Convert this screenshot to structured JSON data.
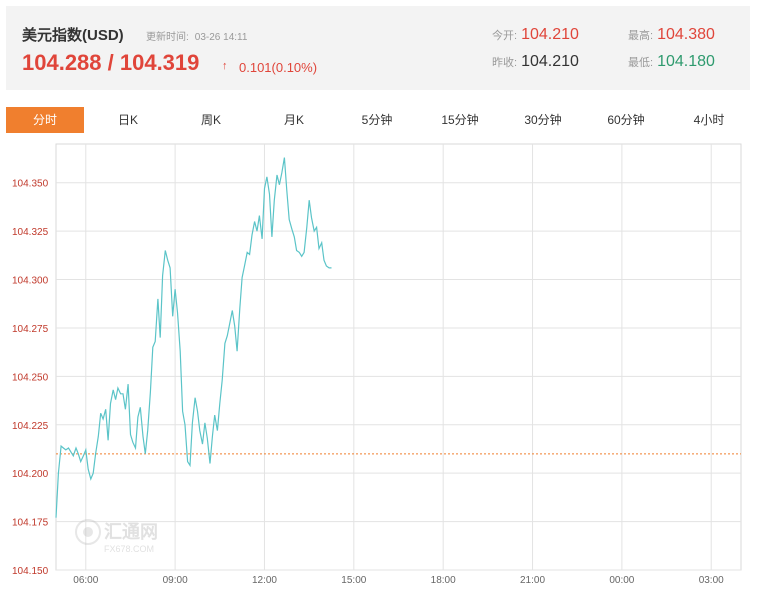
{
  "quote": {
    "name": "美元指数(USD)",
    "update_label": "更新时间:",
    "update_time": "03-26 14:11",
    "price": "104.288 / 104.319",
    "arrow": "↑",
    "change": "0.101(0.10%)"
  },
  "stats": {
    "open_label": "今开:",
    "open_value": "104.210",
    "prev_label": "昨收:",
    "prev_value": "104.210",
    "high_label": "最高:",
    "high_value": "104.380",
    "low_label": "最低:",
    "low_value": "104.180"
  },
  "tabs": [
    {
      "label": "分时",
      "active": true
    },
    {
      "label": "日K",
      "active": false
    },
    {
      "label": "周K",
      "active": false
    },
    {
      "label": "月K",
      "active": false
    },
    {
      "label": "5分钟",
      "active": false
    },
    {
      "label": "15分钟",
      "active": false
    },
    {
      "label": "30分钟",
      "active": false
    },
    {
      "label": "60分钟",
      "active": false
    },
    {
      "label": "4小时",
      "active": false
    }
  ],
  "watermark": {
    "cn": "汇通网",
    "en": "FX678.COM"
  },
  "colors": {
    "line": "#5bc4c8",
    "reference": "#f07f2e",
    "up": "#e0453a",
    "down": "#2e9a6e",
    "accent": "#f07f2e"
  },
  "chart_data": {
    "type": "line",
    "title": "",
    "xlabel": "",
    "ylabel": "",
    "x_ticks": [
      "06:00",
      "09:00",
      "12:00",
      "15:00",
      "18:00",
      "21:00",
      "00:00",
      "03:00"
    ],
    "y_ticks": [
      "104.350",
      "104.325",
      "104.300",
      "104.275",
      "104.250",
      "104.225",
      "104.200",
      "104.175",
      "104.150"
    ],
    "ylim": [
      104.15,
      104.37
    ],
    "xlim_hours": [
      5.0,
      28.0
    ],
    "reference_line": 104.21,
    "grid": true,
    "series": [
      {
        "x": [
          5.0,
          5.08,
          5.17,
          5.25,
          5.33,
          5.42,
          5.5,
          5.58,
          5.67,
          5.75,
          5.83,
          5.92,
          6.0,
          6.08,
          6.17,
          6.25,
          6.33,
          6.42,
          6.5,
          6.58,
          6.67,
          6.75,
          6.83,
          6.92,
          7.0,
          7.08,
          7.17,
          7.25,
          7.33,
          7.42,
          7.5,
          7.58,
          7.67,
          7.75,
          7.83,
          7.92,
          8.0,
          8.08,
          8.17,
          8.25,
          8.33,
          8.42,
          8.5,
          8.58,
          8.67,
          8.75,
          8.83,
          8.92,
          9.0,
          9.08,
          9.17,
          9.25,
          9.33,
          9.42,
          9.5,
          9.58,
          9.67,
          9.75,
          9.83,
          9.92,
          10.0,
          10.08,
          10.17,
          10.25,
          10.33,
          10.42,
          10.5,
          10.58,
          10.67,
          10.75,
          10.83,
          10.92,
          11.0,
          11.08,
          11.17,
          11.25,
          11.33,
          11.42,
          11.5,
          11.58,
          11.67,
          11.75,
          11.83,
          11.92,
          12.0,
          12.08,
          12.17,
          12.25,
          12.33,
          12.42,
          12.5,
          12.58,
          12.67,
          12.75,
          12.83,
          12.92,
          13.0,
          13.08,
          13.17,
          13.25,
          13.33,
          13.42,
          13.5,
          13.58,
          13.67,
          13.75,
          13.83,
          13.92,
          14.0,
          14.08,
          14.17,
          14.25
        ],
        "y": [
          104.177,
          104.2,
          104.214,
          104.213,
          104.212,
          104.213,
          104.211,
          104.209,
          104.213,
          104.21,
          104.206,
          104.209,
          104.212,
          104.202,
          104.197,
          104.2,
          104.21,
          104.219,
          104.231,
          104.228,
          104.233,
          104.217,
          104.236,
          104.243,
          104.238,
          104.244,
          104.241,
          104.241,
          104.233,
          104.246,
          104.22,
          104.216,
          104.213,
          104.229,
          104.234,
          104.219,
          104.21,
          104.222,
          104.242,
          104.265,
          104.268,
          104.29,
          104.27,
          104.302,
          104.315,
          104.31,
          104.306,
          104.281,
          104.295,
          104.283,
          104.263,
          104.232,
          104.225,
          104.206,
          104.204,
          104.226,
          104.239,
          104.232,
          104.222,
          104.215,
          104.226,
          104.218,
          104.205,
          104.219,
          104.23,
          104.222,
          104.236,
          104.248,
          104.267,
          104.271,
          104.277,
          104.284,
          104.276,
          104.263,
          104.285,
          104.301,
          104.307,
          104.314,
          104.313,
          104.323,
          104.33,
          104.325,
          104.333,
          104.321,
          104.347,
          104.353,
          104.344,
          104.322,
          104.341,
          104.354,
          104.349,
          104.355,
          104.363,
          104.346,
          104.331,
          104.326,
          104.322,
          104.315,
          104.314,
          104.312,
          104.314,
          104.327,
          104.341,
          104.332,
          104.325,
          104.327,
          104.316,
          104.319,
          104.31,
          104.307,
          104.306,
          104.306
        ]
      }
    ]
  }
}
